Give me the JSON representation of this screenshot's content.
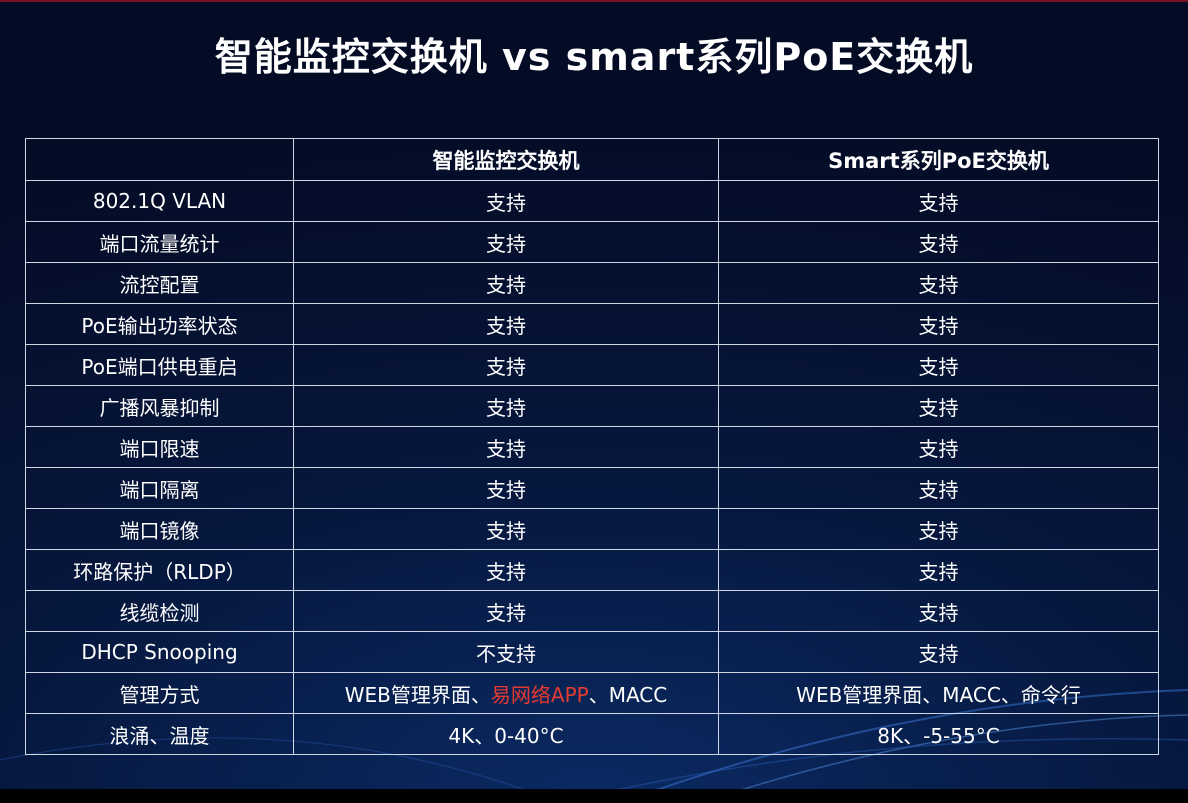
{
  "title": "智能监控交换机 vs smart系列PoE交换机",
  "colors": {
    "background": "#06173d",
    "highlight_red": "#e53a2f",
    "border": "#cfd6e4"
  },
  "table": {
    "headers": [
      "",
      "智能监控交换机",
      "Smart系列PoE交换机"
    ],
    "rows": [
      {
        "feature": "802.1Q VLAN",
        "a": "支持",
        "b": "支持"
      },
      {
        "feature": "端口流量统计",
        "a": "支持",
        "b": "支持"
      },
      {
        "feature": "流控配置",
        "a": "支持",
        "b": "支持"
      },
      {
        "feature": "PoE输出功率状态",
        "a": "支持",
        "b": "支持"
      },
      {
        "feature": "PoE端口供电重启",
        "a": "支持",
        "b": "支持"
      },
      {
        "feature": "广播风暴抑制",
        "a": "支持",
        "b": "支持"
      },
      {
        "feature": "端口限速",
        "a": "支持",
        "b": "支持"
      },
      {
        "feature": "端口隔离",
        "a": "支持",
        "b": "支持"
      },
      {
        "feature": "端口镜像",
        "a": "支持",
        "b": "支持"
      },
      {
        "feature": "环路保护（RLDP）",
        "a": "支持",
        "b": "支持"
      },
      {
        "feature": "线缆检测",
        "a": "支持",
        "b": "支持"
      },
      {
        "feature": "DHCP Snooping",
        "a": "不支持",
        "b": "支持"
      },
      {
        "feature": "管理方式",
        "a_parts": [
          "WEB管理界面、",
          "易网络APP",
          "、MACC"
        ],
        "b": "WEB管理界面、MACC、命令行"
      },
      {
        "feature": "浪涌、温度",
        "a": "4K、0-40°C",
        "b": "8K、-5-55°C"
      }
    ]
  }
}
